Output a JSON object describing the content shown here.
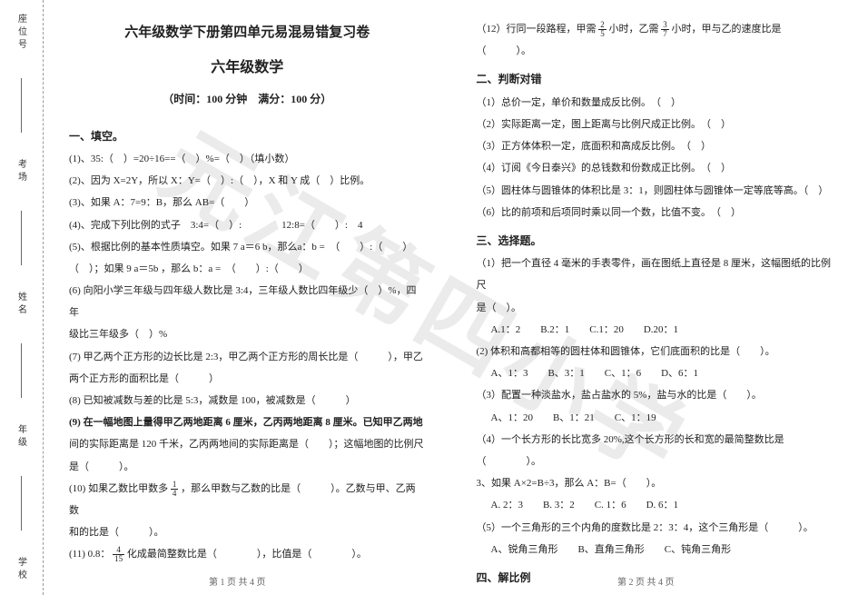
{
  "watermark": "元江第四小学",
  "sidebar": {
    "labels": [
      "座位号",
      "考场",
      "姓名",
      "年级",
      "学校"
    ],
    "divider": "装订线"
  },
  "header": {
    "title_main": "六年级数学下册第四单元易混易错复习卷",
    "title_sub": "六年级数学",
    "info": "（时间：100 分钟　满分：100 分）"
  },
  "left": {
    "sec1_head": "一、填空。",
    "q1": "(1)、35:（　）=20÷16==（　）%=（　）（填小数）",
    "q2": "(2)、因为 X=2Y，所以 X：Y=（　）:（　），X 和 Y 成（　）比例。",
    "q3": "(3)、如果 A：7=9：B，那么 AB=（　　）",
    "q4": "(4)、完成下列比例的式子　3:4=（　）:　　　　12:8=（　　）:　4",
    "q5": "(5)、根据比例的基本性质填空。如果 7 a＝6 b，那么a：b =　（　　）:（　　）",
    "q5b": "（　）；如果 9 a＝5b ，那么 b：a =　（　　）:（　　）",
    "q6": "(6) 向阳小学三年级与四年级人数比是 3:4，三年级人数比四年级少（　）%，四年",
    "q6b": "级比三年级多（　）%",
    "q7": "(7) 甲乙两个正方形的边长比是 2:3，甲乙两个正方形的周长比是（　　　），甲乙",
    "q7b": "两个正方形的面积比是（　　　）",
    "q8": "(8) 已知被减数与差的比是 5:3，减数是 100，被减数是（　　　）",
    "q9_pre": "(9) 在一幅地图上量得甲乙两地距离 6 厘米，乙丙两地距离 8 厘米。已知甲乙两地",
    "q9_mid": "间的实际距离是 120 千米，乙丙两地间的实际距离是（　　）；这幅地图的比例尺",
    "q9_end": "是（　　　）。",
    "q10_pre": "(10) 如果乙数比甲数多",
    "q10_frac_num": "1",
    "q10_frac_den": "4",
    "q10_post": "，那么甲数与乙数的比是（　　　）。乙数与甲、乙两数",
    "q10b": "和的比是（　　　）。",
    "q11_pre": "(11) 0.8：",
    "q11_frac_num": "4",
    "q11_frac_den": "15",
    "q11_post": "化成最简整数比是（　　　　），比值是（　　　　）。"
  },
  "right": {
    "q12_pre": "（12）行同一段路程，甲需",
    "q12_f1n": "2",
    "q12_f1d": "5",
    "q12_mid": "小时，乙需",
    "q12_f2n": "3",
    "q12_f2d": "7",
    "q12_post": "小时，甲与乙的速度比是（　　　）。",
    "sec2_head": "二、判断对错",
    "j1": "（1）总价一定，单价和数量成反比例。　（　）",
    "j2": "（2）实际距离一定，图上距离与比例尺成正比例。　（　）",
    "j3": "（3）正方体体积一定，底面积和高成反比例。　（　）",
    "j4": "（4）订阅《今日泰兴》的总钱数和份数成正比例。　（　）",
    "j5": "（5）圆柱体与圆锥体的体积比是 3：1，则圆柱体与圆锥体一定等底等高。（　）",
    "j6": "（6）比的前项和后项同时乘以同一个数，比值不变。　（　）",
    "sec3_head": "三、选择题。",
    "x1": "（1）把一个直径 4 毫米的手表零件，画在图纸上直径是 8 厘米，这幅图纸的比例尺",
    "x1b": "是（　）。",
    "x1_opts": "A.1：2　　B.2：1　　C.1：20　　D.20：1",
    "x2": "(2)  体积和高都相等的圆柱体和圆锥体，它们底面积的比是（　　）。",
    "x2_opts": "A、1：3　　B、3：1　　C、1：6　　D、6：1",
    "x3": "（3）配置一种淡盐水，盐占盐水的 5%，盐与水的比是（　　）。",
    "x3_opts": "A、1：20　　B、1：21　　C、1：19",
    "x4": "（4）一个长方形的长比宽多 20%,这个长方形的长和宽的最简整数比是（　　　　）。",
    "x5": "3、如果 A×2=B÷3，那么 A：B=（　　）。",
    "x5_opts": "A. 2：3　　B. 3：2　　C. 1：6　　D. 6：1",
    "x6": "（5）一个三角形的三个内角的度数比是 2：3：4，这个三角形是（　　　）。",
    "x6_opts": "A、锐角三角形　　B、直角三角形　　C、钝角三角形",
    "sec4_head": "四、解比例"
  },
  "footer": {
    "left": "第 1 页 共 4 页",
    "right": "第 2 页 共 4 页"
  }
}
